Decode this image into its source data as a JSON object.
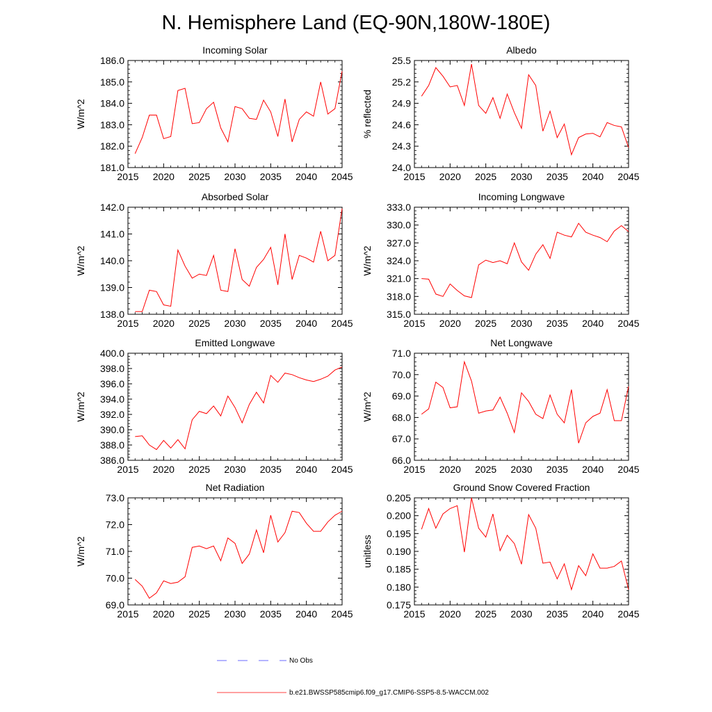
{
  "main_title": "N. Hemisphere Land (EQ-90N,180W-180E)",
  "line_color": "#ff0000",
  "obs_color": "#3a3aff",
  "legend": {
    "no_obs_label": "No Obs",
    "case_label": "b.e21.BWSSP585cmip6.f09_g17.CMIP6-SSP5-8.5-WACCM.002"
  },
  "chart_data": [
    {
      "type": "line",
      "title": "Incoming Solar",
      "ylabel": "W/m^2",
      "xlim": [
        2015,
        2045
      ],
      "ylim": [
        181.0,
        186.0
      ],
      "xticks": [
        2015,
        2020,
        2025,
        2030,
        2035,
        2040,
        2045
      ],
      "yticks": [
        "181.0",
        "182.0",
        "183.0",
        "184.0",
        "185.0",
        "186.0"
      ],
      "ytick_values": [
        181,
        182,
        183,
        184,
        185,
        186
      ],
      "x": [
        2016,
        2017,
        2018,
        2019,
        2020,
        2021,
        2022,
        2023,
        2024,
        2025,
        2026,
        2027,
        2028,
        2029,
        2030,
        2031,
        2032,
        2033,
        2034,
        2035,
        2036,
        2037,
        2038,
        2039,
        2040,
        2041,
        2042,
        2043,
        2044,
        2045
      ],
      "values": [
        181.65,
        182.4,
        183.45,
        183.45,
        182.35,
        182.45,
        184.6,
        184.7,
        183.05,
        183.1,
        183.75,
        184.05,
        182.85,
        182.2,
        183.85,
        183.75,
        183.3,
        183.25,
        184.15,
        183.6,
        182.45,
        184.2,
        182.2,
        183.25,
        183.6,
        183.4,
        185.0,
        183.5,
        183.75,
        185.5
      ]
    },
    {
      "type": "line",
      "title": "Albedo",
      "ylabel": "% reflected",
      "xlim": [
        2015,
        2045
      ],
      "ylim": [
        24.0,
        25.5
      ],
      "xticks": [
        2015,
        2020,
        2025,
        2030,
        2035,
        2040,
        2045
      ],
      "yticks": [
        "24.0",
        "24.3",
        "24.6",
        "24.9",
        "25.2",
        "25.5"
      ],
      "ytick_values": [
        24.0,
        24.3,
        24.6,
        24.9,
        25.2,
        25.5
      ],
      "x": [
        2016,
        2017,
        2018,
        2019,
        2020,
        2021,
        2022,
        2023,
        2024,
        2025,
        2026,
        2027,
        2028,
        2029,
        2030,
        2031,
        2032,
        2033,
        2034,
        2035,
        2036,
        2037,
        2038,
        2039,
        2040,
        2041,
        2042,
        2043,
        2044,
        2045
      ],
      "values": [
        25.0,
        25.15,
        25.4,
        25.28,
        25.13,
        25.15,
        24.87,
        25.45,
        24.87,
        24.76,
        24.98,
        24.69,
        25.03,
        24.77,
        24.55,
        25.3,
        25.15,
        24.51,
        24.79,
        24.42,
        24.61,
        24.18,
        24.42,
        24.47,
        24.48,
        24.43,
        24.63,
        24.59,
        24.57,
        24.28
      ]
    },
    {
      "type": "line",
      "title": "Absorbed Solar",
      "ylabel": "W/m^2",
      "xlim": [
        2015,
        2045
      ],
      "ylim": [
        138.0,
        142.0
      ],
      "xticks": [
        2015,
        2020,
        2025,
        2030,
        2035,
        2040,
        2045
      ],
      "yticks": [
        "138.0",
        "139.0",
        "140.0",
        "141.0",
        "142.0"
      ],
      "ytick_values": [
        138,
        139,
        140,
        141,
        142
      ],
      "x": [
        2016,
        2017,
        2018,
        2019,
        2020,
        2021,
        2022,
        2023,
        2024,
        2025,
        2026,
        2027,
        2028,
        2029,
        2030,
        2031,
        2032,
        2033,
        2034,
        2035,
        2036,
        2037,
        2038,
        2039,
        2040,
        2041,
        2042,
        2043,
        2044,
        2045
      ],
      "values": [
        138.1,
        138.1,
        138.9,
        138.85,
        138.35,
        138.3,
        140.4,
        139.8,
        139.35,
        139.5,
        139.45,
        140.2,
        138.9,
        138.85,
        140.45,
        139.3,
        139.05,
        139.75,
        140.05,
        140.5,
        139.1,
        141.0,
        139.3,
        140.2,
        140.1,
        139.95,
        141.1,
        140.0,
        140.2,
        141.95
      ]
    },
    {
      "type": "line",
      "title": "Incoming Longwave",
      "ylabel": "W/m^2",
      "xlim": [
        2015,
        2045
      ],
      "ylim": [
        315.0,
        333.0
      ],
      "xticks": [
        2015,
        2020,
        2025,
        2030,
        2035,
        2040,
        2045
      ],
      "yticks": [
        "315.0",
        "318.0",
        "321.0",
        "324.0",
        "327.0",
        "330.0",
        "333.0"
      ],
      "ytick_values": [
        315,
        318,
        321,
        324,
        327,
        330,
        333
      ],
      "x": [
        2016,
        2017,
        2018,
        2019,
        2020,
        2021,
        2022,
        2023,
        2024,
        2025,
        2026,
        2027,
        2028,
        2029,
        2030,
        2031,
        2032,
        2033,
        2034,
        2035,
        2036,
        2037,
        2038,
        2039,
        2040,
        2041,
        2042,
        2043,
        2044,
        2045
      ],
      "values": [
        321.0,
        320.9,
        318.4,
        318.0,
        320.1,
        319.0,
        318.1,
        317.8,
        323.3,
        324.1,
        323.7,
        324.0,
        323.5,
        327.0,
        323.8,
        322.4,
        325.1,
        326.7,
        324.4,
        328.8,
        328.3,
        328.0,
        330.3,
        328.8,
        328.3,
        327.9,
        327.2,
        329.0,
        329.9,
        328.9
      ]
    },
    {
      "type": "line",
      "title": "Emitted Longwave",
      "ylabel": "W/m^2",
      "xlim": [
        2015,
        2045
      ],
      "ylim": [
        386.0,
        400.0
      ],
      "xticks": [
        2015,
        2020,
        2025,
        2030,
        2035,
        2040,
        2045
      ],
      "yticks": [
        "386.0",
        "388.0",
        "390.0",
        "392.0",
        "394.0",
        "396.0",
        "398.0",
        "400.0"
      ],
      "ytick_values": [
        386,
        388,
        390,
        392,
        394,
        396,
        398,
        400
      ],
      "x": [
        2016,
        2017,
        2018,
        2019,
        2020,
        2021,
        2022,
        2023,
        2024,
        2025,
        2026,
        2027,
        2028,
        2029,
        2030,
        2031,
        2032,
        2033,
        2034,
        2035,
        2036,
        2037,
        2038,
        2039,
        2040,
        2041,
        2042,
        2043,
        2044,
        2045
      ],
      "values": [
        389.1,
        389.2,
        388.0,
        387.4,
        388.6,
        387.6,
        388.7,
        387.5,
        391.3,
        392.4,
        392.1,
        393.1,
        391.8,
        394.4,
        392.9,
        390.9,
        393.3,
        394.9,
        393.5,
        397.1,
        396.2,
        397.4,
        397.2,
        396.8,
        396.5,
        396.3,
        396.6,
        397.0,
        397.8,
        398.2
      ]
    },
    {
      "type": "line",
      "title": "Net Longwave",
      "ylabel": "W/m^2",
      "xlim": [
        2015,
        2045
      ],
      "ylim": [
        66.0,
        71.0
      ],
      "xticks": [
        2015,
        2020,
        2025,
        2030,
        2035,
        2040,
        2045
      ],
      "yticks": [
        "66.0",
        "67.0",
        "68.0",
        "69.0",
        "70.0",
        "71.0"
      ],
      "ytick_values": [
        66,
        67,
        68,
        69,
        70,
        71
      ],
      "x": [
        2016,
        2017,
        2018,
        2019,
        2020,
        2021,
        2022,
        2023,
        2024,
        2025,
        2026,
        2027,
        2028,
        2029,
        2030,
        2031,
        2032,
        2033,
        2034,
        2035,
        2036,
        2037,
        2038,
        2039,
        2040,
        2041,
        2042,
        2043,
        2044,
        2045
      ],
      "values": [
        68.15,
        68.4,
        69.65,
        69.4,
        68.45,
        68.5,
        70.6,
        69.7,
        68.2,
        68.3,
        68.35,
        68.95,
        68.2,
        67.3,
        69.15,
        68.75,
        68.15,
        67.95,
        69.05,
        68.15,
        67.75,
        69.3,
        66.8,
        67.75,
        68.05,
        68.2,
        69.3,
        67.85,
        67.85,
        69.45
      ]
    },
    {
      "type": "line",
      "title": "Net Radiation",
      "ylabel": "W/m^2",
      "xlim": [
        2015,
        2045
      ],
      "ylim": [
        69.0,
        73.0
      ],
      "xticks": [
        2015,
        2020,
        2025,
        2030,
        2035,
        2040,
        2045
      ],
      "yticks": [
        "69.0",
        "70.0",
        "71.0",
        "72.0",
        "73.0"
      ],
      "ytick_values": [
        69,
        70,
        71,
        72,
        73
      ],
      "x": [
        2016,
        2017,
        2018,
        2019,
        2020,
        2021,
        2022,
        2023,
        2024,
        2025,
        2026,
        2027,
        2028,
        2029,
        2030,
        2031,
        2032,
        2033,
        2034,
        2035,
        2036,
        2037,
        2038,
        2039,
        2040,
        2041,
        2042,
        2043,
        2044,
        2045
      ],
      "values": [
        69.95,
        69.7,
        69.25,
        69.45,
        69.9,
        69.8,
        69.85,
        70.05,
        71.15,
        71.2,
        71.1,
        71.2,
        70.65,
        71.5,
        71.3,
        70.55,
        70.9,
        71.8,
        70.95,
        72.35,
        71.35,
        71.7,
        72.5,
        72.45,
        72.05,
        71.75,
        71.75,
        72.1,
        72.35,
        72.5
      ]
    },
    {
      "type": "line",
      "title": "Ground Snow Covered Fraction",
      "ylabel": "unitless",
      "xlim": [
        2015,
        2045
      ],
      "ylim": [
        0.175,
        0.205
      ],
      "xticks": [
        2015,
        2020,
        2025,
        2030,
        2035,
        2040,
        2045
      ],
      "yticks": [
        "0.175",
        "0.180",
        "0.185",
        "0.190",
        "0.195",
        "0.200",
        "0.205"
      ],
      "ytick_values": [
        0.175,
        0.18,
        0.185,
        0.19,
        0.195,
        0.2,
        0.205
      ],
      "x": [
        2016,
        2017,
        2018,
        2019,
        2020,
        2021,
        2022,
        2023,
        2024,
        2025,
        2026,
        2027,
        2028,
        2029,
        2030,
        2031,
        2032,
        2033,
        2034,
        2035,
        2036,
        2037,
        2038,
        2039,
        2040,
        2041,
        2042,
        2043,
        2044,
        2045
      ],
      "values": [
        0.1962,
        0.202,
        0.1965,
        0.2005,
        0.202,
        0.2028,
        0.1898,
        0.205,
        0.1965,
        0.194,
        0.2005,
        0.1902,
        0.1945,
        0.1922,
        0.1864,
        0.2003,
        0.1965,
        0.1867,
        0.187,
        0.1823,
        0.1865,
        0.1793,
        0.186,
        0.1832,
        0.1893,
        0.1853,
        0.1853,
        0.1858,
        0.1873,
        0.1793
      ]
    }
  ]
}
